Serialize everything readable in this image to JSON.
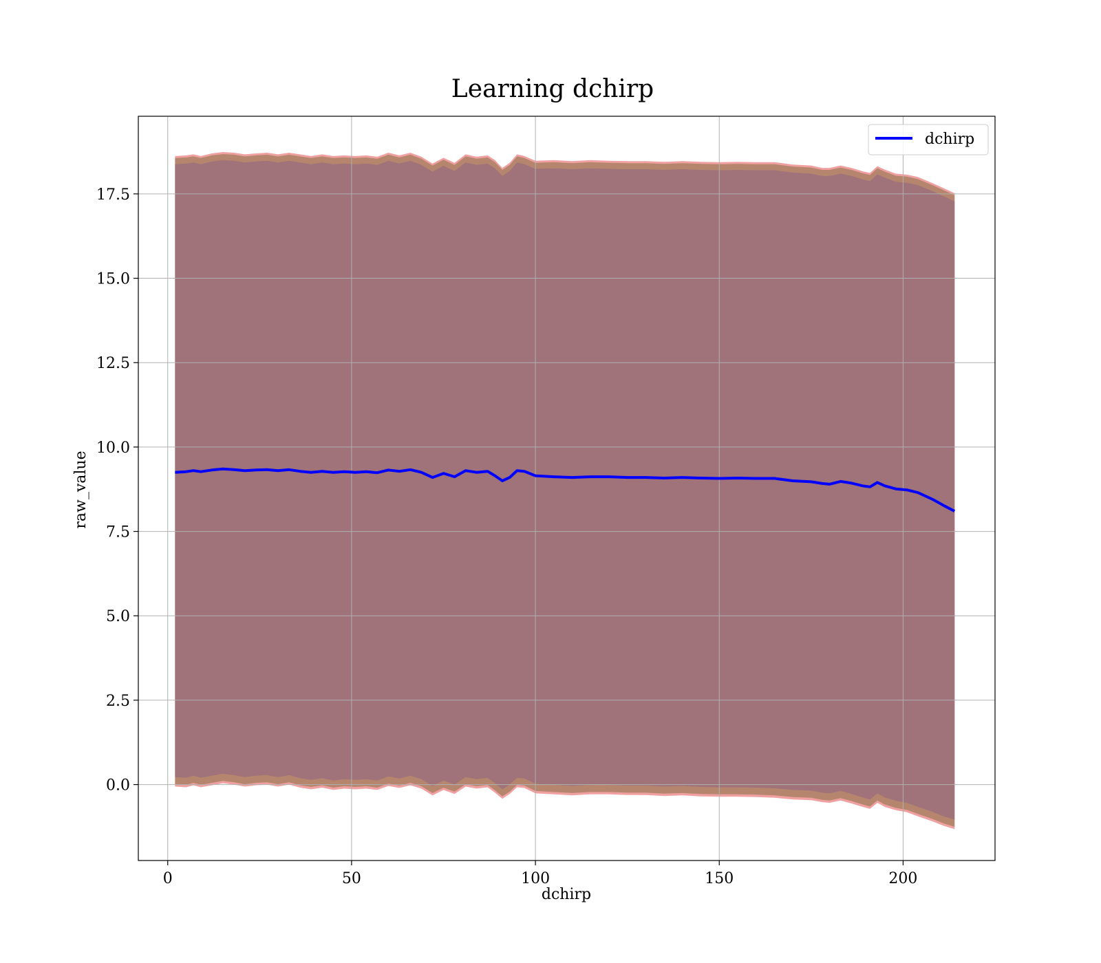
{
  "chart_data": {
    "type": "line",
    "title": "Learning dchirp",
    "xlabel": "dchirp",
    "ylabel": "raw_value",
    "xlim": [
      -8,
      225
    ],
    "ylim": [
      -2.25,
      19.8
    ],
    "xticks": [
      0,
      50,
      100,
      150,
      200
    ],
    "yticks": [
      0.0,
      2.5,
      5.0,
      7.5,
      10.0,
      12.5,
      15.0,
      17.5
    ],
    "xtick_labels": [
      "0",
      "50",
      "100",
      "150",
      "200"
    ],
    "ytick_labels": [
      "0.0",
      "2.5",
      "5.0",
      "7.5",
      "10.0",
      "12.5",
      "15.0",
      "17.5"
    ],
    "grid": true,
    "legend": {
      "position": "top-right",
      "entries": [
        "dchirp"
      ]
    },
    "colors": {
      "line": "#0000ff",
      "band_inner": "#a0727a",
      "band_middle": "#b5866d",
      "band_outer": "#f0a0a0"
    },
    "series": [
      {
        "name": "dchirp",
        "x": [
          2,
          5,
          7,
          9,
          12,
          15,
          18,
          21,
          24,
          27,
          30,
          33,
          36,
          39,
          42,
          45,
          48,
          51,
          54,
          57,
          60,
          63,
          66,
          69,
          72,
          75,
          78,
          81,
          84,
          87,
          89,
          91,
          93,
          95,
          97,
          100,
          105,
          110,
          115,
          120,
          125,
          130,
          135,
          140,
          145,
          150,
          155,
          160,
          165,
          170,
          175,
          178,
          180,
          183,
          186,
          189,
          191,
          193,
          195,
          198,
          201,
          204,
          208,
          211,
          214
        ],
        "y": [
          9.25,
          9.27,
          9.3,
          9.27,
          9.32,
          9.35,
          9.33,
          9.3,
          9.32,
          9.33,
          9.3,
          9.33,
          9.28,
          9.25,
          9.28,
          9.25,
          9.27,
          9.25,
          9.27,
          9.24,
          9.32,
          9.28,
          9.33,
          9.25,
          9.1,
          9.22,
          9.12,
          9.3,
          9.25,
          9.28,
          9.15,
          9.0,
          9.1,
          9.3,
          9.28,
          9.15,
          9.12,
          9.1,
          9.12,
          9.12,
          9.1,
          9.1,
          9.08,
          9.1,
          9.08,
          9.07,
          9.08,
          9.07,
          9.07,
          9.0,
          8.97,
          8.92,
          8.9,
          8.98,
          8.93,
          8.85,
          8.82,
          8.95,
          8.85,
          8.76,
          8.73,
          8.65,
          8.45,
          8.27,
          8.1
        ],
        "lower": [
          0.08,
          0.06,
          0.12,
          0.06,
          0.12,
          0.18,
          0.14,
          0.08,
          0.12,
          0.14,
          0.08,
          0.14,
          0.05,
          0.0,
          0.05,
          -0.02,
          0.02,
          0.0,
          0.02,
          -0.02,
          0.1,
          0.04,
          0.12,
          0.02,
          -0.18,
          -0.02,
          -0.14,
          0.08,
          0.02,
          0.06,
          -0.1,
          -0.28,
          -0.14,
          0.06,
          0.04,
          -0.12,
          -0.15,
          -0.18,
          -0.15,
          -0.15,
          -0.17,
          -0.17,
          -0.2,
          -0.18,
          -0.21,
          -0.22,
          -0.22,
          -0.23,
          -0.25,
          -0.3,
          -0.32,
          -0.38,
          -0.4,
          -0.33,
          -0.42,
          -0.52,
          -0.58,
          -0.4,
          -0.52,
          -0.62,
          -0.68,
          -0.8,
          -0.95,
          -1.08,
          -1.18
        ],
        "upper": [
          18.5,
          18.52,
          18.55,
          18.5,
          18.58,
          18.62,
          18.6,
          18.55,
          18.58,
          18.6,
          18.55,
          18.6,
          18.55,
          18.5,
          18.55,
          18.5,
          18.52,
          18.5,
          18.52,
          18.48,
          18.6,
          18.52,
          18.6,
          18.48,
          18.28,
          18.45,
          18.3,
          18.55,
          18.48,
          18.52,
          18.38,
          18.15,
          18.3,
          18.55,
          18.5,
          18.36,
          18.38,
          18.35,
          18.38,
          18.36,
          18.35,
          18.35,
          18.33,
          18.35,
          18.33,
          18.32,
          18.33,
          18.32,
          18.32,
          18.25,
          18.22,
          18.15,
          18.15,
          18.22,
          18.15,
          18.05,
          18.0,
          18.2,
          18.1,
          17.98,
          17.95,
          17.88,
          17.7,
          17.55,
          17.4
        ]
      }
    ]
  }
}
